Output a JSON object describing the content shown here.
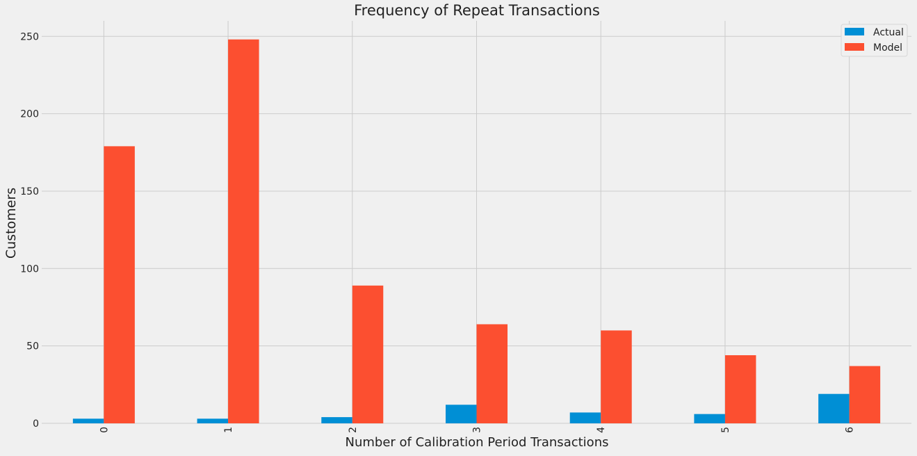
{
  "chart_data": {
    "type": "bar",
    "title": "Frequency of Repeat Transactions",
    "xlabel": "Number of Calibration Period Transactions",
    "ylabel": "Customers",
    "categories": [
      "0",
      "1",
      "2",
      "3",
      "4",
      "5",
      "6"
    ],
    "series": [
      {
        "name": "Actual",
        "color": "#008fd5",
        "values": [
          3,
          3,
          4,
          12,
          7,
          6,
          19
        ]
      },
      {
        "name": "Model",
        "color": "#fc4f30",
        "values": [
          179,
          248,
          89,
          64,
          60,
          44,
          37
        ]
      }
    ],
    "ylim": [
      0,
      260
    ],
    "yticks": [
      0,
      50,
      100,
      150,
      200,
      250
    ],
    "grid": true,
    "legend": "top-right"
  }
}
